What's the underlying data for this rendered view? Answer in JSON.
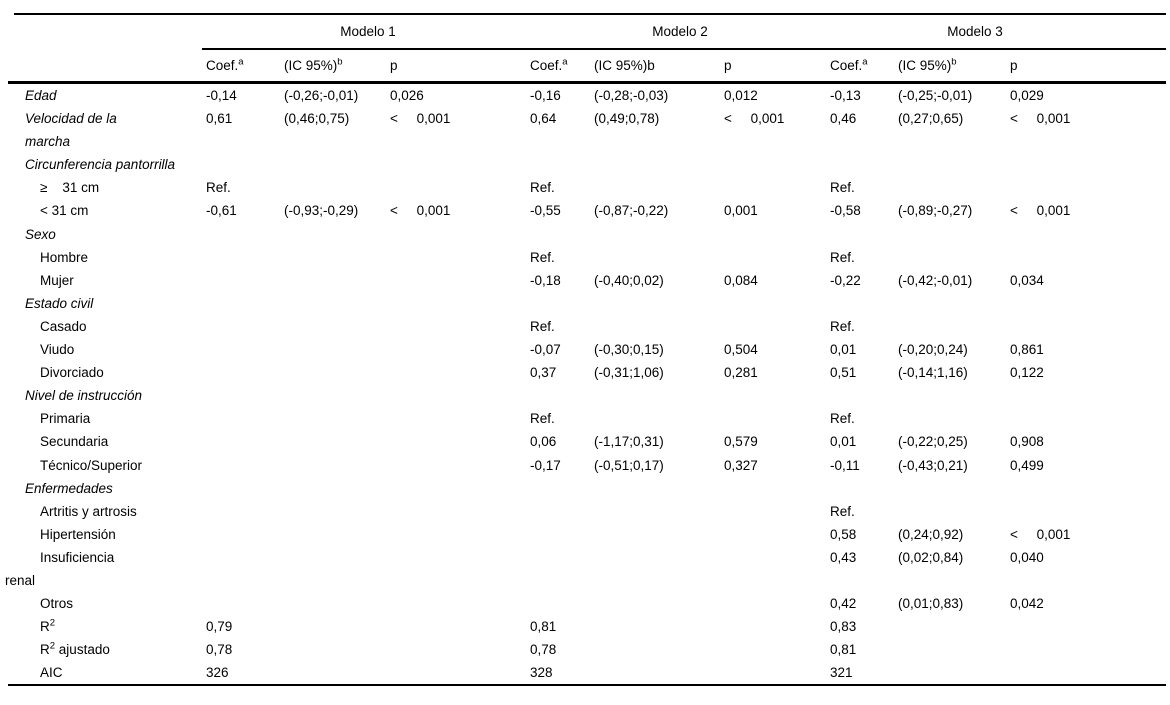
{
  "colors": {
    "background": "#ffffff",
    "text": "#000000",
    "rule": "#000000"
  },
  "table": {
    "models": [
      {
        "name": "Modelo 1",
        "columns": [
          [
            {
              "t": "Coef."
            },
            {
              "t": "a",
              "sup": true
            }
          ],
          [
            {
              "t": "(IC 95%)"
            },
            {
              "t": "b",
              "sup": true
            }
          ],
          [
            {
              "t": "p"
            }
          ]
        ]
      },
      {
        "name": "Modelo 2",
        "columns": [
          [
            {
              "t": "Coef."
            },
            {
              "t": "a",
              "sup": true
            }
          ],
          [
            {
              "t": "(IC 95%)b"
            }
          ],
          [
            {
              "t": "p"
            }
          ]
        ]
      },
      {
        "name": "Modelo 3",
        "columns": [
          [
            {
              "t": "Coef."
            },
            {
              "t": "a",
              "sup": true
            }
          ],
          [
            {
              "t": "(IC 95%)"
            },
            {
              "t": "b",
              "sup": true
            }
          ],
          [
            {
              "t": "p"
            }
          ]
        ]
      }
    ],
    "rows": [
      {
        "style": "cat",
        "label": [
          {
            "t": "Edad"
          }
        ],
        "cells": [
          "-0,14",
          "(-0,26;-0,01)",
          "0,026",
          "-0,16",
          "(-0,28;-0,03)",
          "0,012",
          "-0,13",
          "(-0,25;-0,01)",
          "0,029"
        ]
      },
      {
        "style": "cat",
        "label": [
          {
            "t": "Velocidad de la"
          }
        ],
        "label2": [
          {
            "t": "marcha"
          }
        ],
        "label2_style": "cat",
        "cells": [
          "0,61",
          "(0,46;0,75)",
          "<     0,001",
          "0,64",
          "(0,49;0,78)",
          "<     0,001",
          "0,46",
          "(0,27;0,65)",
          "<     0,001"
        ]
      },
      {
        "style": "cat",
        "label": [
          {
            "t": "Circunferencia pantorrilla"
          }
        ],
        "cells": [
          "",
          "",
          "",
          "",
          "",
          "",
          "",
          "",
          ""
        ]
      },
      {
        "style": "sub",
        "label": [
          {
            "t": "≥    31 cm"
          }
        ],
        "cells": [
          "Ref.",
          "",
          "",
          "Ref.",
          "",
          "",
          "Ref.",
          "",
          ""
        ]
      },
      {
        "style": "sub",
        "label": [
          {
            "t": "< 31 cm"
          }
        ],
        "cells": [
          "-0,61",
          "(-0,93;-0,29)",
          "<     0,001",
          "-0,55",
          "(-0,87;-0,22)",
          "0,001",
          "-0,58",
          "(-0,89;-0,27)",
          "<     0,001"
        ]
      },
      {
        "style": "cat",
        "label": [
          {
            "t": "Sexo"
          }
        ],
        "cells": [
          "",
          "",
          "",
          "",
          "",
          "",
          "",
          "",
          ""
        ]
      },
      {
        "style": "sub",
        "label": [
          {
            "t": "Hombre"
          }
        ],
        "cells": [
          "",
          "",
          "",
          "Ref.",
          "",
          "",
          "Ref.",
          "",
          ""
        ]
      },
      {
        "style": "sub",
        "label": [
          {
            "t": "Mujer"
          }
        ],
        "cells": [
          "",
          "",
          "",
          "-0,18",
          "(-0,40;0,02)",
          "0,084",
          "-0,22",
          "(-0,42;-0,01)",
          "0,034"
        ]
      },
      {
        "style": "cat",
        "label": [
          {
            "t": "Estado civil"
          }
        ],
        "cells": [
          "",
          "",
          "",
          "",
          "",
          "",
          "",
          "",
          ""
        ]
      },
      {
        "style": "sub",
        "label": [
          {
            "t": "Casado"
          }
        ],
        "cells": [
          "",
          "",
          "",
          "Ref.",
          "",
          "",
          "Ref.",
          "",
          ""
        ]
      },
      {
        "style": "sub",
        "label": [
          {
            "t": "Viudo"
          }
        ],
        "cells": [
          "",
          "",
          "",
          "-0,07",
          "(-0,30;0,15)",
          "0,504",
          "0,01",
          "(-0,20;0,24)",
          "0,861"
        ]
      },
      {
        "style": "sub",
        "label": [
          {
            "t": "Divorciado"
          }
        ],
        "cells": [
          "",
          "",
          "",
          "0,37",
          "(-0,31;1,06)",
          "0,281",
          "0,51",
          "(-0,14;1,16)",
          "0,122"
        ]
      },
      {
        "style": "cat",
        "label": [
          {
            "t": "Nivel de instrucción"
          }
        ],
        "cells": [
          "",
          "",
          "",
          "",
          "",
          "",
          "",
          "",
          ""
        ]
      },
      {
        "style": "sub",
        "label": [
          {
            "t": "Primaria"
          }
        ],
        "cells": [
          "",
          "",
          "",
          "Ref.",
          "",
          "",
          "Ref.",
          "",
          ""
        ]
      },
      {
        "style": "sub",
        "label": [
          {
            "t": "Secundaria"
          }
        ],
        "cells": [
          "",
          "",
          "",
          "0,06",
          "(-1,17;0,31)",
          "0,579",
          "0,01",
          "(-0,22;0,25)",
          "0,908"
        ]
      },
      {
        "style": "sub",
        "label": [
          {
            "t": "Técnico/Superior"
          }
        ],
        "cells": [
          "",
          "",
          "",
          "-0,17",
          "(-0,51;0,17)",
          "0,327",
          "-0,11",
          "(-0,43;0,21)",
          "0,499"
        ]
      },
      {
        "style": "cat",
        "label": [
          {
            "t": "Enfermedades"
          }
        ],
        "cells": [
          "",
          "",
          "",
          "",
          "",
          "",
          "",
          "",
          ""
        ]
      },
      {
        "style": "sub",
        "label": [
          {
            "t": "Artritis y artrosis"
          }
        ],
        "cells": [
          "",
          "",
          "",
          "",
          "",
          "",
          "Ref.",
          "",
          ""
        ]
      },
      {
        "style": "sub",
        "label": [
          {
            "t": "Hipertensión"
          }
        ],
        "cells": [
          "",
          "",
          "",
          "",
          "",
          "",
          "0,58",
          "(0,24;0,92)",
          "<     0,001"
        ]
      },
      {
        "style": "sub",
        "label": [
          {
            "t": "Insuficiencia"
          }
        ],
        "label2": [
          {
            "t": "renal"
          }
        ],
        "label2_style": "flush",
        "cells": [
          "",
          "",
          "",
          "",
          "",
          "",
          "0,43",
          "(0,02;0,84)",
          "0,040"
        ]
      },
      {
        "style": "sub",
        "label": [
          {
            "t": "Otros"
          }
        ],
        "cells": [
          "",
          "",
          "",
          "",
          "",
          "",
          "0,42",
          "(0,01;0,83)",
          "0,042"
        ]
      },
      {
        "style": "sub",
        "label": [
          {
            "t": "R"
          },
          {
            "t": "2",
            "sup": true
          }
        ],
        "cells": [
          "0,79",
          "",
          "",
          "0,81",
          "",
          "",
          "0,83",
          "",
          ""
        ]
      },
      {
        "style": "sub",
        "label": [
          {
            "t": "R"
          },
          {
            "t": "2",
            "sup": true
          },
          {
            "t": " ajustado"
          }
        ],
        "cells": [
          "0,78",
          "",
          "",
          "0,78",
          "",
          "",
          "0,81",
          "",
          ""
        ]
      },
      {
        "style": "sub",
        "label": [
          {
            "t": "AIC"
          }
        ],
        "cells": [
          "326",
          "",
          "",
          "328",
          "",
          "",
          "321",
          "",
          ""
        ]
      }
    ]
  }
}
